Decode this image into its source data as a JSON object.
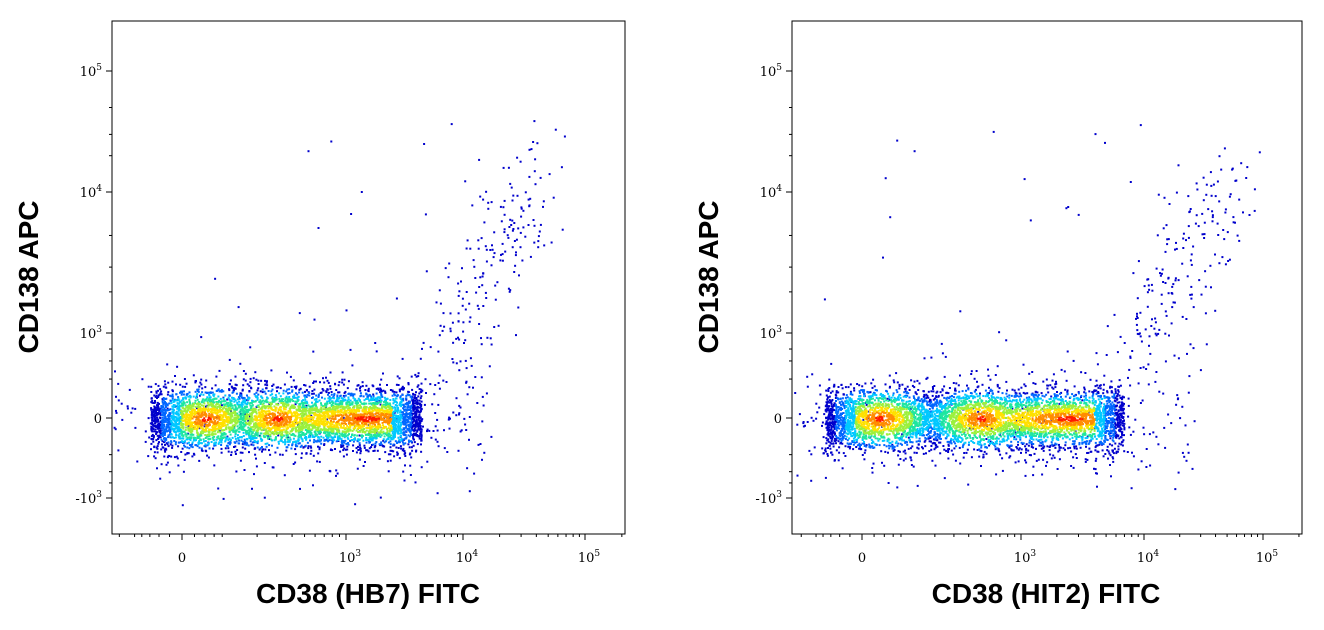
{
  "chart_data": [
    {
      "type": "scatter",
      "subtype": "flow-cytometry-density-dot-plot",
      "xlabel": "CD38 (HB7) FITC",
      "ylabel": "CD138 APC",
      "x_scale": "biexponential",
      "y_scale": "biexponential",
      "x_ticks": [
        {
          "value": 0,
          "label": "0"
        },
        {
          "value": 1000,
          "label": "10",
          "exp": "3"
        },
        {
          "value": 10000,
          "label": "10",
          "exp": "4"
        },
        {
          "value": 100000,
          "label": "10",
          "exp": "5"
        }
      ],
      "y_ticks": [
        {
          "value": -1000,
          "label": "-10",
          "exp": "3"
        },
        {
          "value": 0,
          "label": "0"
        },
        {
          "value": 1000,
          "label": "10",
          "exp": "3"
        },
        {
          "value": 10000,
          "label": "10",
          "exp": "4"
        },
        {
          "value": 100000,
          "label": "10",
          "exp": "5"
        }
      ],
      "xlim": [
        -300,
        250000
      ],
      "ylim": [
        -1800,
        250000
      ],
      "populations": [
        {
          "name": "",
          "x_center": 40,
          "y_center": 0,
          "density": "high"
        },
        {
          "name": "",
          "x_center": 300,
          "y_center": 0,
          "density": "high"
        },
        {
          "name": "",
          "x_center": 1500,
          "y_center": 0,
          "density": "medium"
        },
        {
          "name": "",
          "x_center": 22000,
          "y_center": 5000,
          "density": "sparse"
        }
      ],
      "grid": false,
      "legend": "none"
    },
    {
      "type": "scatter",
      "subtype": "flow-cytometry-density-dot-plot",
      "xlabel": "CD38 (HIT2) FITC",
      "ylabel": "CD138 APC",
      "x_scale": "biexponential",
      "y_scale": "biexponential",
      "x_ticks": [
        {
          "value": 0,
          "label": "0"
        },
        {
          "value": 1000,
          "label": "10",
          "exp": "3"
        },
        {
          "value": 10000,
          "label": "10",
          "exp": "4"
        },
        {
          "value": 100000,
          "label": "10",
          "exp": "5"
        }
      ],
      "y_ticks": [
        {
          "value": -1000,
          "label": "-10",
          "exp": "3"
        },
        {
          "value": 0,
          "label": "0"
        },
        {
          "value": 1000,
          "label": "10",
          "exp": "3"
        },
        {
          "value": 10000,
          "label": "10",
          "exp": "4"
        },
        {
          "value": 100000,
          "label": "10",
          "exp": "5"
        }
      ],
      "xlim": [
        -300,
        250000
      ],
      "ylim": [
        -1800,
        250000
      ],
      "populations": [
        {
          "name": "",
          "x_center": 30,
          "y_center": 0,
          "density": "high"
        },
        {
          "name": "",
          "x_center": 500,
          "y_center": 0,
          "density": "high"
        },
        {
          "name": "",
          "x_center": 2500,
          "y_center": 0,
          "density": "medium"
        },
        {
          "name": "",
          "x_center": 28000,
          "y_center": 4000,
          "density": "sparse"
        }
      ],
      "grid": false,
      "legend": "none"
    }
  ],
  "colors": {
    "density_scale": [
      "#0000cc",
      "#0066ff",
      "#00c8ff",
      "#1ee6a0",
      "#9cf03c",
      "#ffe000",
      "#ff8c00",
      "#ff1a00"
    ],
    "axis": "#000000",
    "background": "#ffffff"
  }
}
